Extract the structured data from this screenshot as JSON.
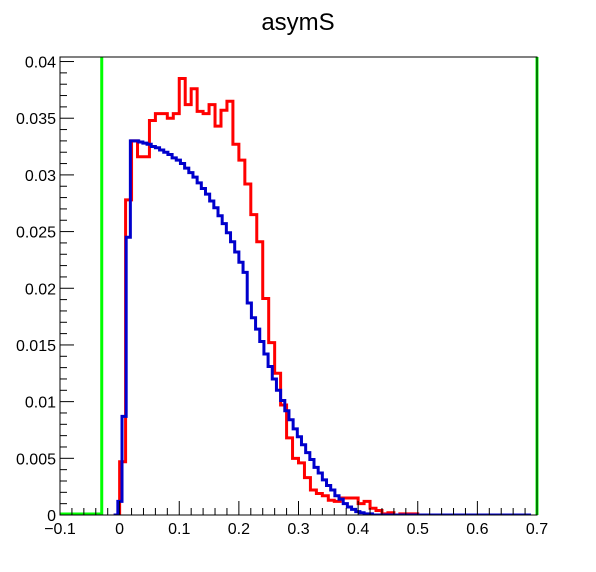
{
  "chart_data": {
    "type": "line",
    "title": "asymS",
    "xlabel": "",
    "ylabel": "",
    "xlim": [
      -0.1,
      0.7
    ],
    "ylim": [
      0,
      0.0404
    ],
    "grid": false,
    "x_ticks": [
      -0.1,
      0,
      0.1,
      0.2,
      0.3,
      0.4,
      0.5,
      0.6,
      0.7
    ],
    "x_tick_labels": [
      "−0.1",
      "0",
      "0.1",
      "0.2",
      "0.3",
      "0.4",
      "0.5",
      "0.6",
      "0.7"
    ],
    "y_ticks": [
      0,
      0.005,
      0.01,
      0.015,
      0.02,
      0.025,
      0.03,
      0.035,
      0.04
    ],
    "y_tick_labels": [
      "0",
      "0.005",
      "0.01",
      "0.015",
      "0.02",
      "0.025",
      "0.03",
      "0.035",
      "0.04"
    ],
    "vertical_lines": [
      {
        "x": -0.03,
        "color": "#00ff00"
      },
      {
        "x": 0.7,
        "color": "#00ff00"
      }
    ],
    "baseline_segment": {
      "from": -0.1,
      "to": -0.03,
      "y": 0,
      "color": "#00ff00"
    },
    "series": [
      {
        "color": "#ff0000",
        "style": "step",
        "bin_width": 0.01,
        "x_start": -0.01,
        "values": [
          0.0,
          0.0047,
          0.0278,
          0.033,
          0.0316,
          0.0316,
          0.0348,
          0.0354,
          0.0354,
          0.035,
          0.0354,
          0.0385,
          0.0362,
          0.0376,
          0.0356,
          0.0354,
          0.0362,
          0.0343,
          0.0357,
          0.0365,
          0.0327,
          0.0313,
          0.0292,
          0.0265,
          0.0241,
          0.0191,
          0.0152,
          0.0125,
          0.0097,
          0.0068,
          0.005,
          0.0046,
          0.0033,
          0.0022,
          0.0019,
          0.0017,
          0.0013,
          0.0012,
          0.0015,
          0.0015,
          0.0015,
          0.001,
          0.0012,
          0.0006,
          0.0004,
          0.0001,
          0.0002,
          0.0,
          0.0001,
          0.0001,
          0.0001,
          0.0,
          0.0,
          0.0,
          0.0
        ]
      },
      {
        "color": "#0000cc",
        "style": "step",
        "bin_width": 0.007,
        "x_start": -0.01,
        "values": [
          0.0,
          0.0012,
          0.0087,
          0.0245,
          0.033,
          0.033,
          0.0329,
          0.0328,
          0.0327,
          0.0325,
          0.0324,
          0.0322,
          0.032,
          0.0318,
          0.0315,
          0.0313,
          0.031,
          0.0306,
          0.0302,
          0.0298,
          0.0293,
          0.0288,
          0.0283,
          0.0277,
          0.0271,
          0.0264,
          0.0257,
          0.0249,
          0.0241,
          0.0232,
          0.0223,
          0.0214,
          0.0187,
          0.0174,
          0.0164,
          0.0153,
          0.0142,
          0.0131,
          0.012,
          0.011,
          0.0101,
          0.0092,
          0.0084,
          0.0076,
          0.0069,
          0.0062,
          0.0055,
          0.0049,
          0.0042,
          0.0037,
          0.0031,
          0.0026,
          0.0022,
          0.0017,
          0.0014,
          0.001,
          0.0007,
          0.0005,
          0.0003,
          0.0002,
          0.0001,
          0.0001,
          0.0,
          0.0,
          0.0,
          0.0,
          0.0,
          0.0,
          0.0,
          0.0,
          0.0,
          0.0,
          0.0,
          0.0,
          0.0,
          0.0,
          0.0,
          0.0,
          0.0,
          0.0,
          0.0,
          0.0,
          0.0,
          0.0,
          0.0,
          0.0,
          0.0,
          0.0,
          0.0,
          0.0,
          0.0,
          0.0,
          0.0,
          0.0,
          0.0,
          0.0,
          0.0,
          0.0,
          0.0,
          0.0
        ]
      }
    ]
  }
}
